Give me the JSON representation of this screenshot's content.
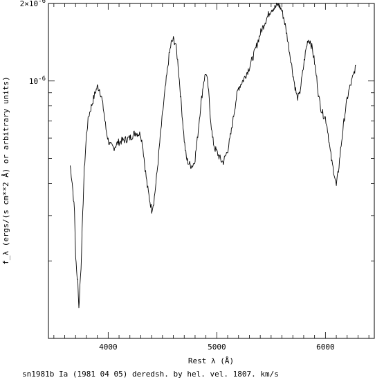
{
  "chart_data": {
    "type": "line",
    "xlabel": "Rest λ (Å)",
    "ylabel": "f_λ (ergs/(s cm**2 Å) or arbitrary units)",
    "caption": "sn1981b Ia (1981 04 05) deredsh. by hel. vel.  1807. km/s",
    "y_scale": "log",
    "xlim": [
      3450,
      6450
    ],
    "ylim": [
      1e-07,
      2e-06
    ],
    "x_ticks": [
      4000,
      5000,
      6000
    ],
    "x_tick_labels": [
      "4000",
      "5000",
      "6000"
    ],
    "y_tick_labels": [
      {
        "value": 1e-06,
        "label": "10^-6"
      },
      {
        "value": 2e-06,
        "label": "2×10^-6"
      }
    ],
    "grid": false,
    "series": [
      {
        "x": [
          3650,
          3670,
          3690,
          3700,
          3710,
          3720,
          3730,
          3740,
          3750,
          3760,
          3780,
          3800,
          3820,
          3850,
          3880,
          3900,
          3920,
          3940,
          3960,
          3980,
          4000,
          4020,
          4050,
          4080,
          4100,
          4150,
          4200,
          4250,
          4300,
          4320,
          4340,
          4360,
          4380,
          4400,
          4420,
          4440,
          4460,
          4480,
          4500,
          4520,
          4540,
          4560,
          4580,
          4600,
          4620,
          4640,
          4660,
          4680,
          4700,
          4720,
          4740,
          4760,
          4780,
          4800,
          4820,
          4850,
          4880,
          4900,
          4920,
          4940,
          4960,
          4980,
          5000,
          5020,
          5040,
          5060,
          5080,
          5100,
          5120,
          5140,
          5160,
          5180,
          5200,
          5250,
          5300,
          5350,
          5400,
          5450,
          5500,
          5520,
          5540,
          5560,
          5580,
          5600,
          5620,
          5640,
          5660,
          5680,
          5700,
          5720,
          5740,
          5760,
          5780,
          5800,
          5820,
          5840,
          5860,
          5880,
          5900,
          5920,
          5940,
          5960,
          5980,
          6000,
          6020,
          6040,
          6060,
          6080,
          6100,
          6120,
          6140,
          6160,
          6180,
          6200,
          6220,
          6240,
          6260,
          6280
        ],
        "y": [
          4.7e-07,
          4e-07,
          3.1e-07,
          2.1e-07,
          1.8e-07,
          1.7e-07,
          1.3e-07,
          1.6e-07,
          1.9e-07,
          2.6e-07,
          4.5e-07,
          6.2e-07,
          7.3e-07,
          8.1e-07,
          9e-07,
          9.5e-07,
          9.3e-07,
          8.6e-07,
          7.6e-07,
          6.5e-07,
          5.9e-07,
          5.6e-07,
          5.5e-07,
          5.7e-07,
          5.8e-07,
          5.9e-07,
          6e-07,
          6.3e-07,
          6.2e-07,
          5.5e-07,
          4.6e-07,
          3.9e-07,
          3.5e-07,
          3.15e-07,
          3.4e-07,
          4e-07,
          4.9e-07,
          6.1e-07,
          7.4e-07,
          8.9e-07,
          1.05e-06,
          1.25e-06,
          1.4e-06,
          1.45e-06,
          1.4e-06,
          1.2e-06,
          9.5e-07,
          7.5e-07,
          5.9e-07,
          5e-07,
          4.8e-07,
          4.7e-07,
          4.7e-07,
          5e-07,
          5.9e-07,
          7.9e-07,
          1e-06,
          1.08e-06,
          9.5e-07,
          7.4e-07,
          6e-07,
          5.5e-07,
          5.3e-07,
          5.1e-07,
          4.9e-07,
          4.85e-07,
          5.1e-07,
          5.4e-07,
          5.9e-07,
          6.6e-07,
          7.6e-07,
          8.6e-07,
          9.4e-07,
          1.02e-06,
          1.13e-06,
          1.3e-06,
          1.53e-06,
          1.72e-06,
          1.9e-06,
          1.92e-06,
          1.93e-06,
          1.98e-06,
          1.95e-06,
          1.87e-06,
          1.73e-06,
          1.56e-06,
          1.38e-06,
          1.22e-06,
          1.07e-06,
          9.5e-07,
          8.6e-07,
          8.8e-07,
          1e-06,
          1.15e-06,
          1.32e-06,
          1.45e-06,
          1.43e-06,
          1.33e-06,
          1.18e-06,
          1.02e-06,
          8.6e-07,
          7.8e-07,
          7.4e-07,
          7.2e-07,
          6.5e-07,
          5.5e-07,
          4.8e-07,
          4.4e-07,
          3.9e-07,
          4.5e-07,
          5.4e-07,
          6.4e-07,
          7.5e-07,
          8.5e-07,
          9.3e-07,
          9.9e-07,
          1.06e-06,
          1.15e-06
        ]
      }
    ]
  }
}
